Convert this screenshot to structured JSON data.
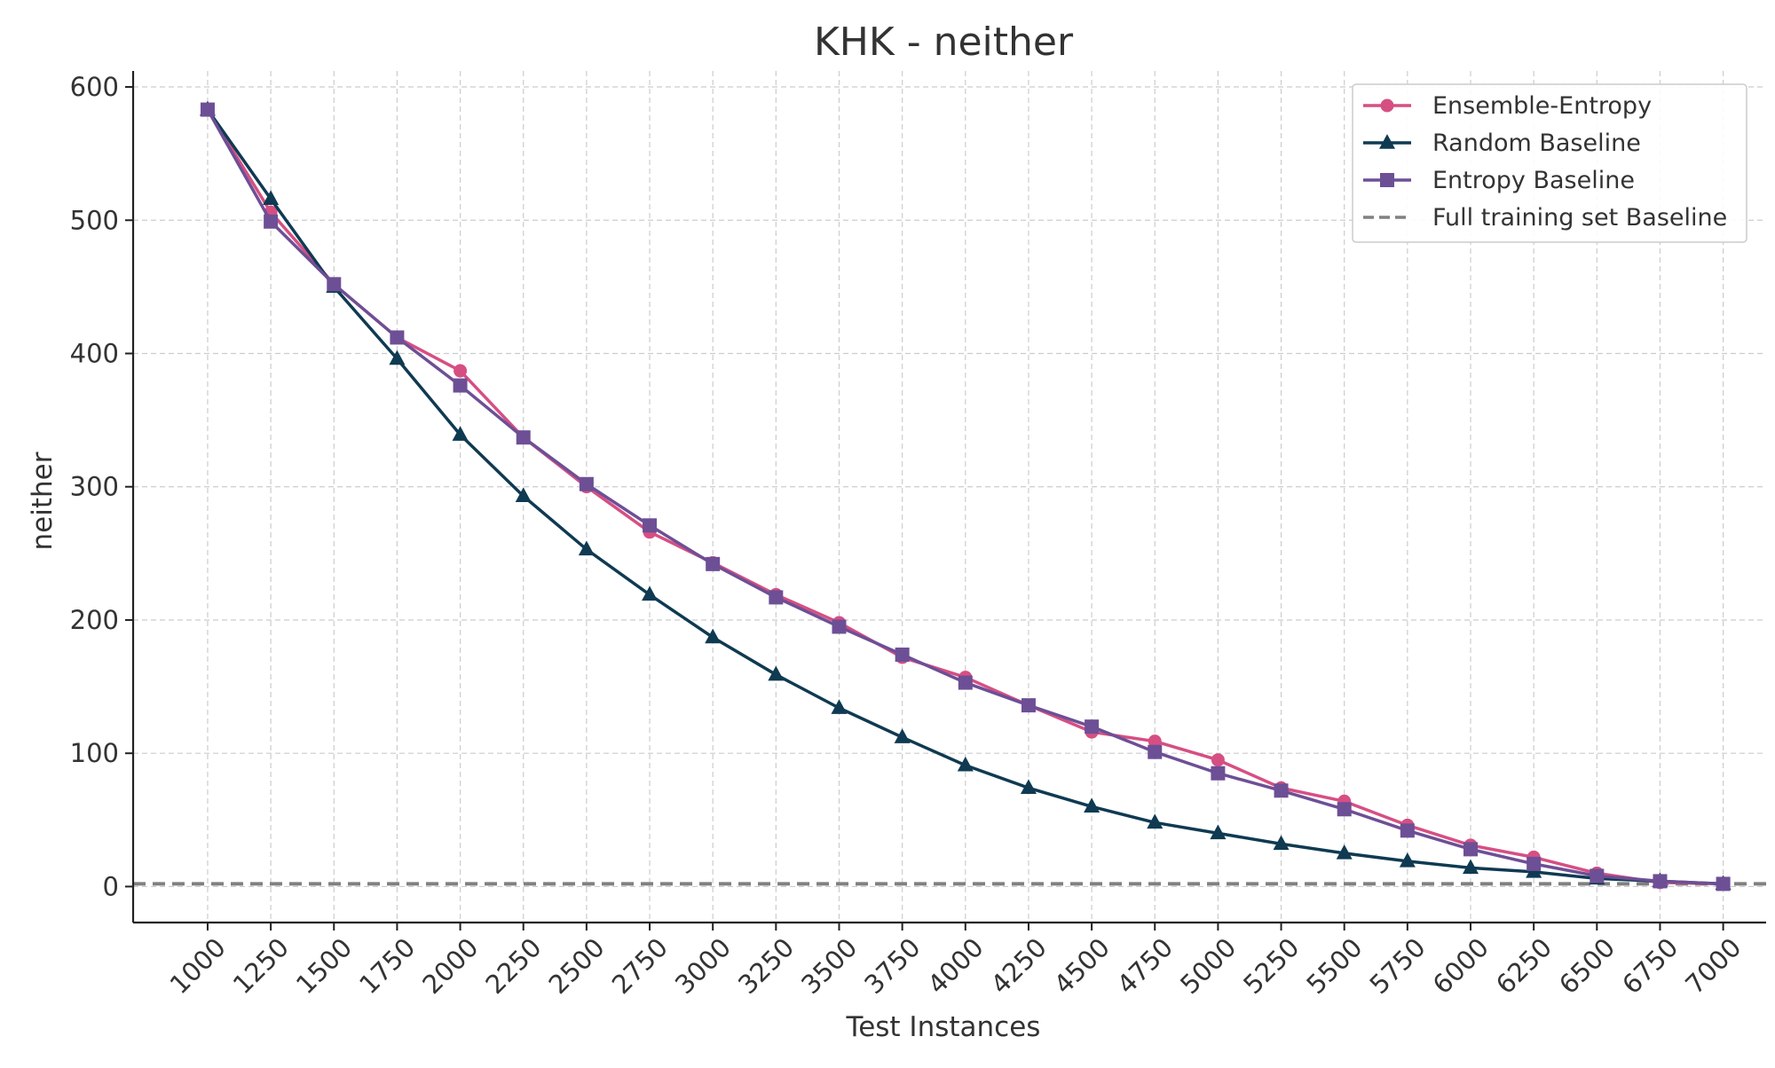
{
  "chart_data": {
    "type": "line",
    "title": "KHK - neither",
    "xlabel": "Test Instances",
    "ylabel": "neither",
    "x": [
      1000,
      1250,
      1500,
      1750,
      2000,
      2250,
      2500,
      2750,
      3000,
      3250,
      3500,
      3750,
      4000,
      4250,
      4500,
      4750,
      5000,
      5250,
      5500,
      5750,
      6000,
      6250,
      6500,
      6750,
      7000
    ],
    "x_tick_labels": [
      "1000",
      "1250",
      "1500",
      "1750",
      "2000",
      "2250",
      "2500",
      "2750",
      "3000",
      "3250",
      "3500",
      "3750",
      "4000",
      "4250",
      "4500",
      "4750",
      "5000",
      "5250",
      "5500",
      "5750",
      "6000",
      "6250",
      "6500",
      "6750",
      "7000"
    ],
    "y_ticks": [
      0,
      100,
      200,
      300,
      400,
      500,
      600
    ],
    "y_tick_labels": [
      "0",
      "100",
      "200",
      "300",
      "400",
      "500",
      "600"
    ],
    "xlim": [
      705,
      7170
    ],
    "ylim": [
      -27,
      612
    ],
    "grid": true,
    "legend_position": "top-right",
    "series": [
      {
        "name": "Ensemble-Entropy",
        "color": "#d64f83",
        "marker": "circle",
        "values": [
          583,
          506,
          452,
          412,
          387,
          337,
          300,
          266,
          243,
          219,
          198,
          172,
          157,
          136,
          116,
          109,
          95,
          74,
          64,
          46,
          31,
          22,
          10,
          3,
          2
        ]
      },
      {
        "name": "Random Baseline",
        "color": "#0f3a52",
        "marker": "triangle",
        "values": [
          583,
          516,
          450,
          396,
          339,
          293,
          253,
          219,
          187,
          159,
          134,
          112,
          91,
          74,
          60,
          48,
          40,
          32,
          25,
          19,
          14,
          11,
          6,
          4,
          2
        ]
      },
      {
        "name": "Entropy Baseline",
        "color": "#6d4f96",
        "marker": "square",
        "values": [
          583,
          499,
          452,
          412,
          376,
          337,
          302,
          271,
          242,
          217,
          195,
          174,
          153,
          136,
          120,
          101,
          85,
          72,
          58,
          42,
          28,
          17,
          8,
          4,
          2
        ]
      }
    ],
    "reference_line": {
      "name": "Full training set Baseline",
      "color": "#808080",
      "style": "dashed",
      "value": 2
    }
  }
}
